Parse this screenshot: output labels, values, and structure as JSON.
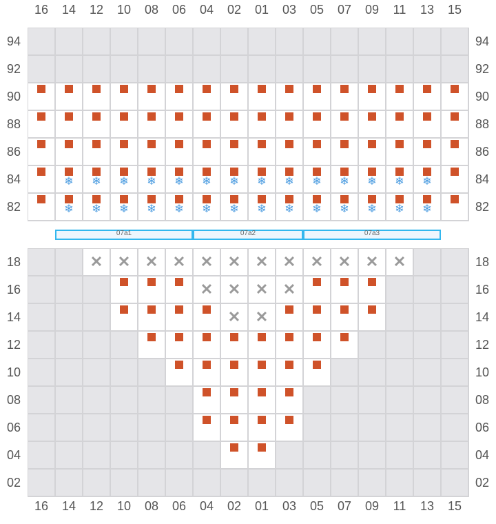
{
  "columns": [
    "16",
    "14",
    "12",
    "10",
    "08",
    "06",
    "04",
    "02",
    "01",
    "03",
    "05",
    "07",
    "09",
    "11",
    "13",
    "15"
  ],
  "colors": {
    "occupied": "#cf5229",
    "snow": "#4a9be0",
    "unavailable": "#e5e5e8",
    "border": "#d3d3d6",
    "zone_border": "#33b7ee"
  },
  "legend_states": {
    "g": "unavailable",
    "w": "empty",
    "o": "occupied",
    "os": "occupied-frozen",
    "x": "blocked"
  },
  "top_section": {
    "rows": [
      {
        "label": "94",
        "cells": [
          "g",
          "g",
          "g",
          "g",
          "g",
          "g",
          "g",
          "g",
          "g",
          "g",
          "g",
          "g",
          "g",
          "g",
          "g",
          "g"
        ]
      },
      {
        "label": "92",
        "cells": [
          "g",
          "g",
          "g",
          "g",
          "g",
          "g",
          "g",
          "g",
          "g",
          "g",
          "g",
          "g",
          "g",
          "g",
          "g",
          "g"
        ]
      },
      {
        "label": "90",
        "cells": [
          "o",
          "o",
          "o",
          "o",
          "o",
          "o",
          "o",
          "o",
          "o",
          "o",
          "o",
          "o",
          "o",
          "o",
          "o",
          "o"
        ]
      },
      {
        "label": "88",
        "cells": [
          "o",
          "o",
          "o",
          "o",
          "o",
          "o",
          "o",
          "o",
          "o",
          "o",
          "o",
          "o",
          "o",
          "o",
          "o",
          "o"
        ]
      },
      {
        "label": "86",
        "cells": [
          "o",
          "o",
          "o",
          "o",
          "o",
          "o",
          "o",
          "o",
          "o",
          "o",
          "o",
          "o",
          "o",
          "o",
          "o",
          "o"
        ]
      },
      {
        "label": "84",
        "cells": [
          "o",
          "os",
          "os",
          "os",
          "os",
          "os",
          "os",
          "os",
          "os",
          "os",
          "os",
          "os",
          "os",
          "os",
          "os",
          "o"
        ]
      },
      {
        "label": "82",
        "cells": [
          "o",
          "os",
          "os",
          "os",
          "os",
          "os",
          "os",
          "os",
          "os",
          "os",
          "os",
          "os",
          "os",
          "os",
          "os",
          "o"
        ]
      }
    ]
  },
  "zones": [
    {
      "label": "07a1",
      "start": 1,
      "end": 6
    },
    {
      "label": "07a2",
      "start": 6,
      "end": 10
    },
    {
      "label": "07a3",
      "start": 10,
      "end": 15
    }
  ],
  "bottom_section": {
    "rows": [
      {
        "label": "18",
        "cells": [
          "g",
          "g",
          "x",
          "x",
          "x",
          "x",
          "x",
          "x",
          "x",
          "x",
          "x",
          "x",
          "x",
          "x",
          "g",
          "g"
        ]
      },
      {
        "label": "16",
        "cells": [
          "g",
          "g",
          "g",
          "o",
          "o",
          "o",
          "x",
          "x",
          "x",
          "x",
          "o",
          "o",
          "o",
          "g",
          "g",
          "g"
        ]
      },
      {
        "label": "14",
        "cells": [
          "g",
          "g",
          "g",
          "o",
          "o",
          "o",
          "o",
          "x",
          "x",
          "o",
          "o",
          "o",
          "o",
          "g",
          "g",
          "g"
        ]
      },
      {
        "label": "12",
        "cells": [
          "g",
          "g",
          "g",
          "g",
          "o",
          "o",
          "o",
          "o",
          "o",
          "o",
          "o",
          "o",
          "g",
          "g",
          "g",
          "g"
        ]
      },
      {
        "label": "10",
        "cells": [
          "g",
          "g",
          "g",
          "g",
          "g",
          "o",
          "o",
          "o",
          "o",
          "o",
          "o",
          "g",
          "g",
          "g",
          "g",
          "g"
        ]
      },
      {
        "label": "08",
        "cells": [
          "g",
          "g",
          "g",
          "g",
          "g",
          "g",
          "o",
          "o",
          "o",
          "o",
          "g",
          "g",
          "g",
          "g",
          "g",
          "g"
        ]
      },
      {
        "label": "06",
        "cells": [
          "g",
          "g",
          "g",
          "g",
          "g",
          "g",
          "o",
          "o",
          "o",
          "o",
          "g",
          "g",
          "g",
          "g",
          "g",
          "g"
        ]
      },
      {
        "label": "04",
        "cells": [
          "g",
          "g",
          "g",
          "g",
          "g",
          "g",
          "g",
          "o",
          "o",
          "g",
          "g",
          "g",
          "g",
          "g",
          "g",
          "g"
        ]
      },
      {
        "label": "02",
        "cells": [
          "g",
          "g",
          "g",
          "g",
          "g",
          "g",
          "g",
          "g",
          "g",
          "g",
          "g",
          "g",
          "g",
          "g",
          "g",
          "g"
        ]
      }
    ]
  },
  "icons": {
    "snow": "❄",
    "blocked": "✕"
  }
}
